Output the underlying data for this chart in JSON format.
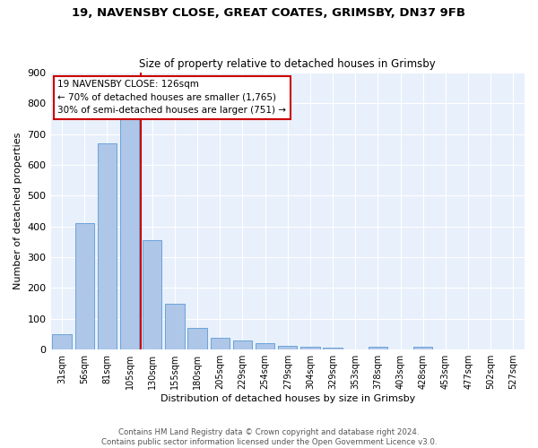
{
  "title1": "19, NAVENSBY CLOSE, GREAT COATES, GRIMSBY, DN37 9FB",
  "title2": "Size of property relative to detached houses in Grimsby",
  "xlabel": "Distribution of detached houses by size in Grimsby",
  "ylabel": "Number of detached properties",
  "footnote": "Contains HM Land Registry data © Crown copyright and database right 2024.\nContains public sector information licensed under the Open Government Licence v3.0.",
  "bar_labels": [
    "31sqm",
    "56sqm",
    "81sqm",
    "105sqm",
    "130sqm",
    "155sqm",
    "180sqm",
    "205sqm",
    "229sqm",
    "254sqm",
    "279sqm",
    "304sqm",
    "329sqm",
    "353sqm",
    "378sqm",
    "403sqm",
    "428sqm",
    "453sqm",
    "477sqm",
    "502sqm",
    "527sqm"
  ],
  "bar_values": [
    50,
    410,
    670,
    750,
    355,
    148,
    70,
    38,
    30,
    22,
    12,
    8,
    5,
    0,
    8,
    0,
    10,
    0,
    0,
    0,
    0
  ],
  "bar_color": "#aec6e8",
  "bar_edge_color": "#5b9bd5",
  "vline_color": "#cc0000",
  "vline_x_index": 4,
  "annotation_text": "19 NAVENSBY CLOSE: 126sqm\n← 70% of detached houses are smaller (1,765)\n30% of semi-detached houses are larger (751) →",
  "annotation_box_color": "#ffffff",
  "annotation_box_edge": "#cc0000",
  "ylim": [
    0,
    900
  ],
  "yticks": [
    0,
    100,
    200,
    300,
    400,
    500,
    600,
    700,
    800,
    900
  ],
  "plot_bg_color": "#e8f0fb"
}
